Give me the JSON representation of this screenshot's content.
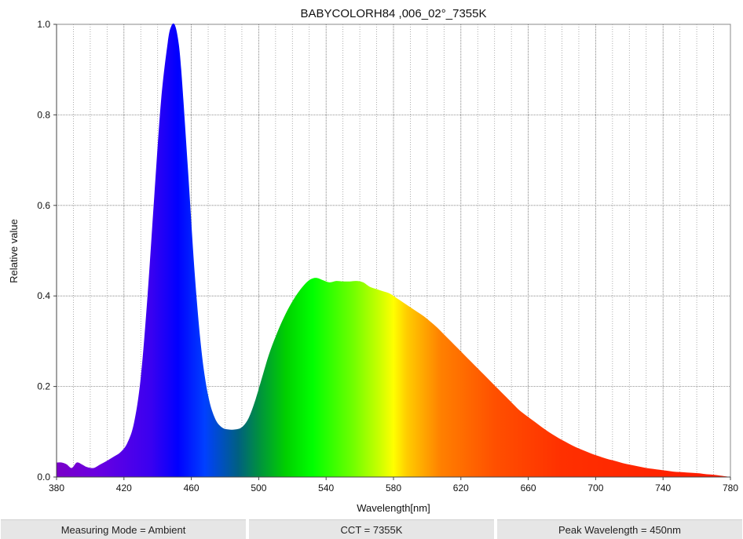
{
  "chart_data": {
    "type": "area",
    "title": "BABYCOLORH84 ,006_02°_7355K",
    "xlabel": "Wavelength[nm]",
    "ylabel": "Relative value",
    "xlim": [
      380,
      780
    ],
    "ylim": [
      0,
      1.0
    ],
    "xticks": [
      380,
      420,
      460,
      500,
      540,
      580,
      620,
      660,
      700,
      740,
      780
    ],
    "yticks": [
      0.0,
      0.2,
      0.4,
      0.6,
      0.8,
      1.0
    ],
    "ytick_labels": [
      "0.0",
      "0.2",
      "0.4",
      "0.6",
      "0.8",
      "1.0"
    ],
    "grid": true,
    "fill": "visible-spectrum-gradient",
    "x": [
      380,
      383,
      386,
      389,
      392,
      395,
      398,
      402,
      406,
      410,
      414,
      418,
      422,
      426,
      430,
      434,
      438,
      442,
      446,
      448,
      450,
      452,
      454,
      458,
      462,
      466,
      470,
      474,
      478,
      482,
      486,
      490,
      494,
      498,
      502,
      506,
      510,
      514,
      518,
      522,
      526,
      530,
      534,
      538,
      542,
      546,
      550,
      554,
      558,
      562,
      566,
      570,
      574,
      578,
      582,
      586,
      590,
      594,
      598,
      602,
      606,
      610,
      614,
      618,
      622,
      626,
      630,
      634,
      638,
      642,
      646,
      650,
      654,
      658,
      662,
      666,
      670,
      674,
      678,
      682,
      686,
      690,
      694,
      698,
      702,
      706,
      710,
      714,
      718,
      722,
      726,
      730,
      734,
      738,
      742,
      746,
      750,
      754,
      758,
      762,
      766,
      770,
      774,
      778,
      780
    ],
    "y": [
      0.032,
      0.032,
      0.028,
      0.02,
      0.032,
      0.028,
      0.022,
      0.02,
      0.028,
      0.036,
      0.045,
      0.055,
      0.075,
      0.12,
      0.22,
      0.4,
      0.62,
      0.83,
      0.96,
      0.995,
      1.0,
      0.97,
      0.9,
      0.68,
      0.45,
      0.28,
      0.18,
      0.13,
      0.11,
      0.105,
      0.105,
      0.11,
      0.13,
      0.17,
      0.22,
      0.27,
      0.31,
      0.345,
      0.375,
      0.4,
      0.42,
      0.435,
      0.44,
      0.435,
      0.43,
      0.433,
      0.432,
      0.432,
      0.433,
      0.43,
      0.42,
      0.415,
      0.41,
      0.405,
      0.395,
      0.385,
      0.375,
      0.365,
      0.355,
      0.343,
      0.33,
      0.315,
      0.3,
      0.285,
      0.27,
      0.255,
      0.24,
      0.225,
      0.21,
      0.195,
      0.18,
      0.165,
      0.15,
      0.138,
      0.127,
      0.116,
      0.105,
      0.095,
      0.086,
      0.078,
      0.07,
      0.063,
      0.057,
      0.051,
      0.046,
      0.041,
      0.037,
      0.033,
      0.029,
      0.026,
      0.023,
      0.02,
      0.018,
      0.016,
      0.014,
      0.012,
      0.011,
      0.01,
      0.009,
      0.008,
      0.006,
      0.005,
      0.003,
      0.001,
      0.0
    ]
  },
  "status": {
    "mode": "Measuring Mode = Ambient",
    "cct": "CCT = 7355K",
    "peak": "Peak Wavelength = 450nm"
  }
}
